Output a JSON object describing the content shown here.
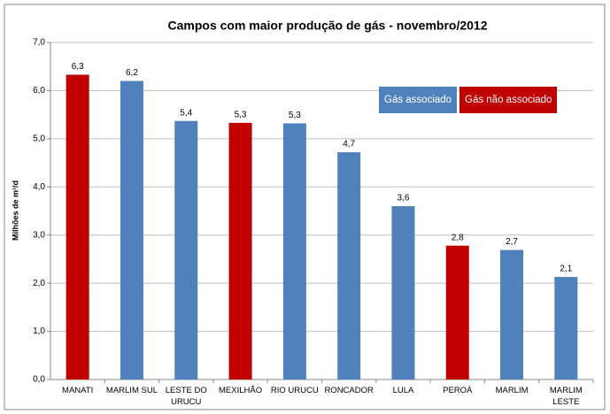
{
  "chart_data": {
    "type": "bar",
    "title": "Campos com maior produção de gás - novembro/2012",
    "y_label": "Milhões de m³/d",
    "categories": [
      "MANATI",
      "MARLIM SUL",
      "LESTE DO URUCU",
      "MEXILHÃO",
      "RIO URUCU",
      "RONCADOR",
      "LULA",
      "PEROÁ",
      "MARLIM",
      "MARLIM LESTE"
    ],
    "values": [
      6.33,
      6.2,
      5.37,
      5.33,
      5.32,
      4.72,
      3.6,
      2.78,
      2.69,
      2.13
    ],
    "value_labels": [
      "6,3",
      "6,2",
      "5,4",
      "5,3",
      "5,3",
      "4,7",
      "3,6",
      "2,8",
      "2,7",
      "2,1"
    ],
    "bar_colors": [
      "#c00000",
      "#4f81bd",
      "#4f81bd",
      "#c00000",
      "#4f81bd",
      "#4f81bd",
      "#4f81bd",
      "#c00000",
      "#4f81bd",
      "#4f81bd"
    ],
    "legend": [
      {
        "name": "Gás associado",
        "color": "#4f81bd"
      },
      {
        "name": "Gás não associado",
        "color": "#c00000"
      }
    ],
    "ylim": [
      0,
      7
    ],
    "yticks": [
      {
        "value": 0,
        "label": "0,0"
      },
      {
        "value": 1,
        "label": "1,0"
      },
      {
        "value": 2,
        "label": "2,0"
      },
      {
        "value": 3,
        "label": "3,0"
      },
      {
        "value": 4,
        "label": "4,0"
      },
      {
        "value": 5,
        "label": "5,0"
      },
      {
        "value": 6,
        "label": "6,0"
      },
      {
        "value": 7,
        "label": "7,0"
      }
    ],
    "grid": true
  }
}
